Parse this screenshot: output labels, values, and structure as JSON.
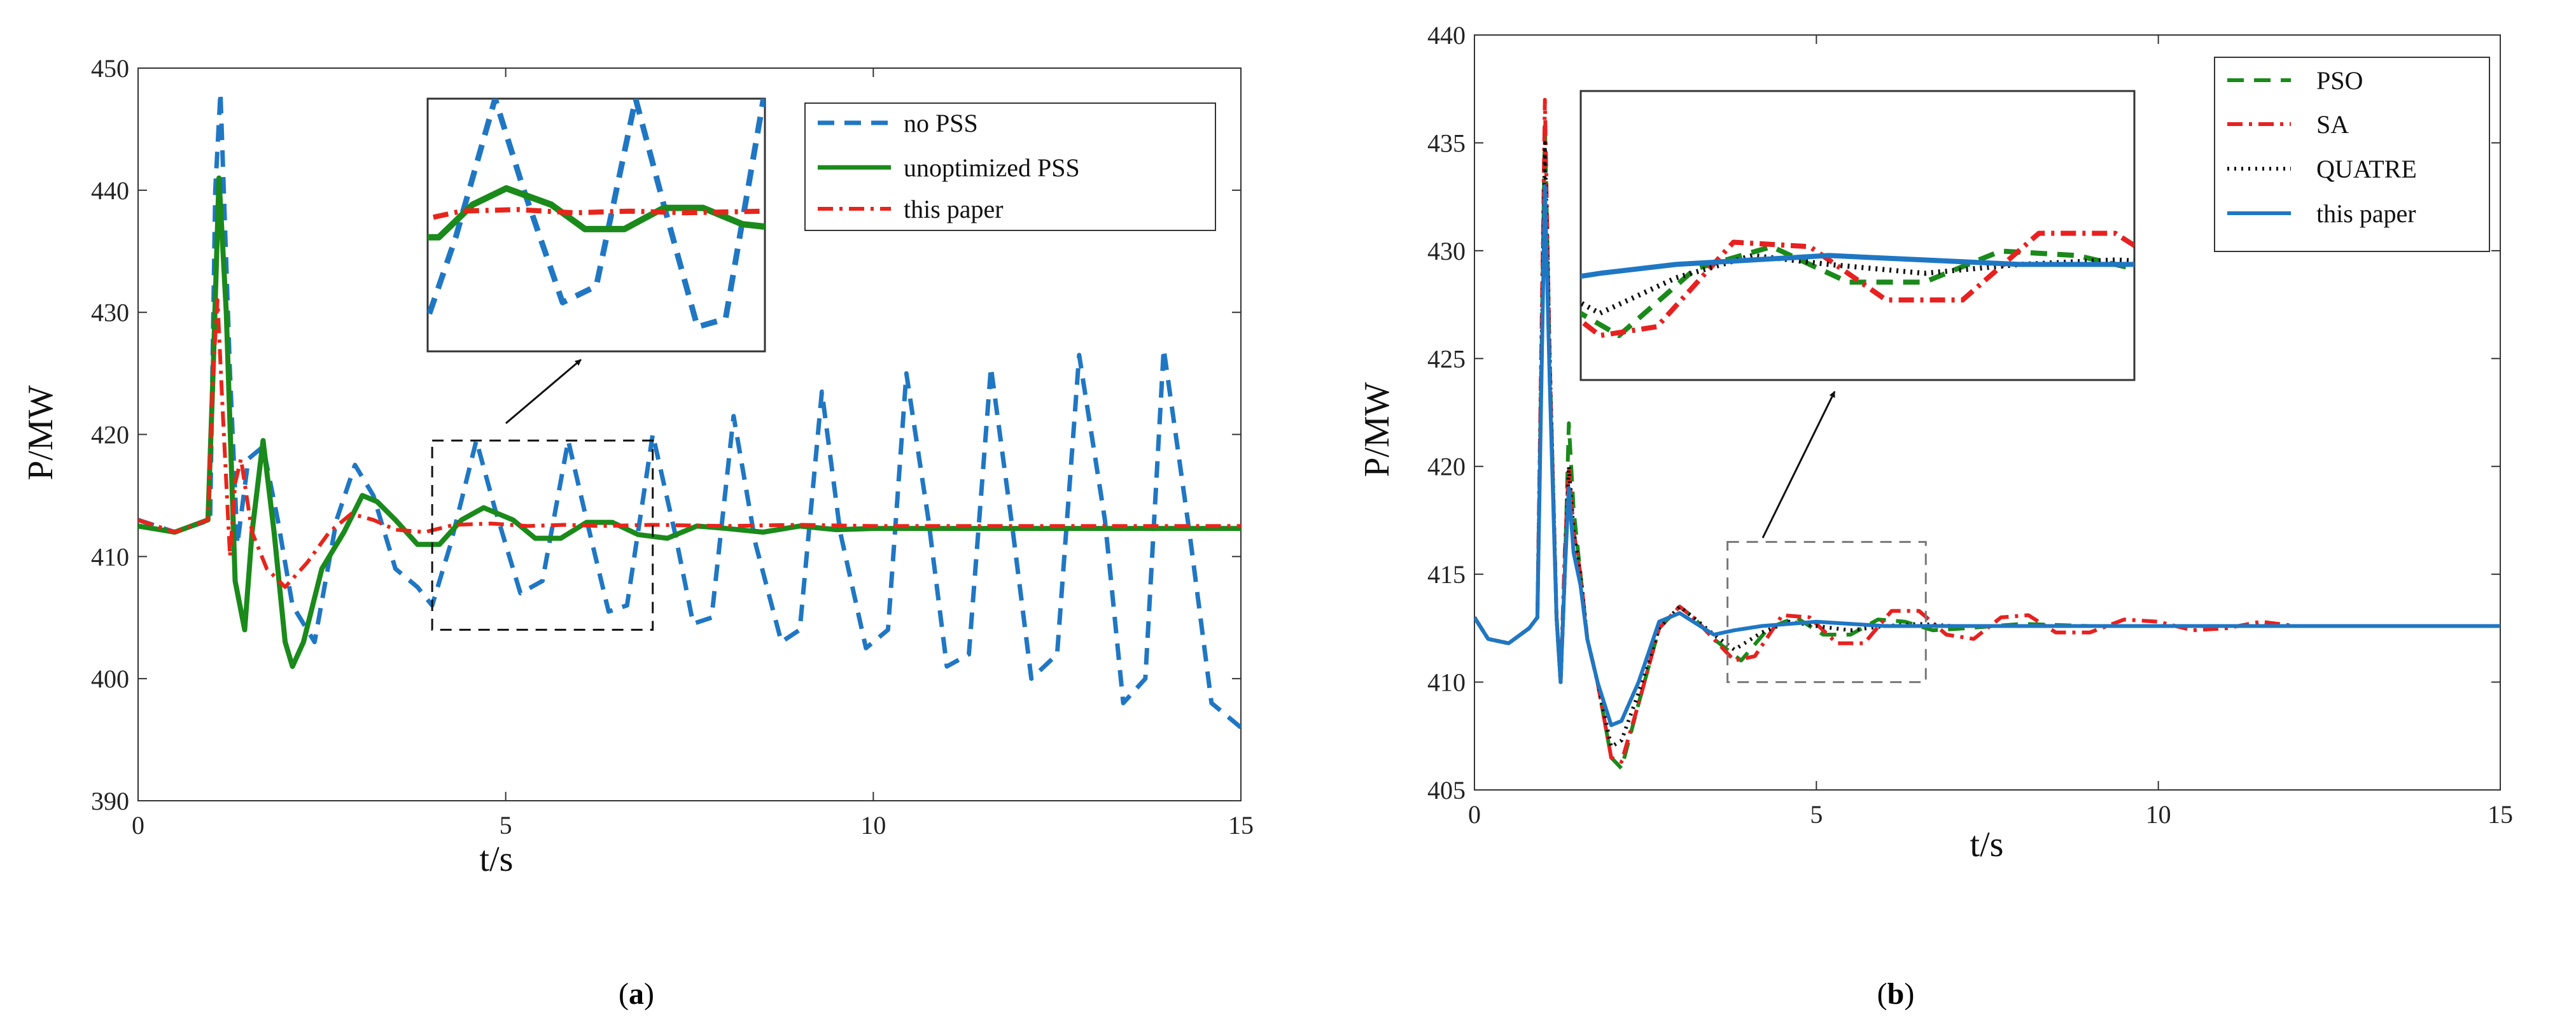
{
  "colors": {
    "blue": "#1f77c4",
    "green": "#1a8a1a",
    "red": "#e8251b",
    "black": "#111111",
    "sa_red": "#e82020",
    "axis": "#333333"
  },
  "chart_data": [
    {
      "type": "line",
      "panel": "a",
      "caption_open": "(",
      "caption_letter": "a",
      "caption_close": ")",
      "xlabel": "t/s",
      "ylabel": "P/MW",
      "xlim": [
        0,
        15
      ],
      "ylim": [
        390,
        450
      ],
      "xticks": [
        0,
        5,
        10,
        15
      ],
      "yticks": [
        390,
        400,
        410,
        420,
        430,
        440,
        450
      ],
      "legend": {
        "position": "top-right",
        "entries": [
          "no PSS",
          "unoptimized PSS",
          "this paper"
        ]
      },
      "zoom_window": {
        "x": [
          4,
          7
        ],
        "y": [
          404,
          419.5
        ]
      },
      "series": [
        {
          "name": "no PSS",
          "color": "#1f77c4",
          "style": "dashed",
          "x": [
            0,
            0.5,
            0.98,
            1.05,
            1.12,
            1.25,
            1.35,
            1.5,
            1.7,
            1.9,
            2.1,
            2.4,
            2.7,
            2.95,
            3.2,
            3.5,
            3.8,
            4.0,
            4.25,
            4.6,
            4.85,
            5.2,
            5.5,
            5.85,
            6.1,
            6.4,
            6.65,
            7.0,
            7.3,
            7.55,
            7.8,
            8.1,
            8.4,
            8.75,
            9.0,
            9.3,
            9.55,
            9.9,
            10.2,
            10.45,
            10.75,
            11.0,
            11.3,
            11.6,
            11.9,
            12.15,
            12.5,
            12.8,
            13.15,
            13.4,
            13.7,
            13.95,
            14.3,
            14.6,
            15.0
          ],
          "y": [
            413,
            412,
            413,
            440,
            448,
            425,
            411,
            418,
            419,
            413,
            406,
            403,
            413,
            417.5,
            415,
            409,
            407.5,
            406,
            411,
            419.5,
            414,
            407,
            408,
            419.5,
            413,
            405.5,
            406,
            420,
            412,
            404.5,
            405,
            421.5,
            411,
            403,
            404,
            423.5,
            412,
            402.5,
            404,
            425,
            413,
            401,
            402,
            425.5,
            412,
            400,
            402,
            426.5,
            413,
            398,
            400,
            427,
            412,
            398,
            396
          ]
        },
        {
          "name": "unoptimized PSS",
          "color": "#1a8a1a",
          "style": "solid",
          "x": [
            0,
            0.5,
            0.95,
            1.02,
            1.1,
            1.2,
            1.32,
            1.45,
            1.55,
            1.7,
            1.85,
            2.0,
            2.1,
            2.25,
            2.5,
            2.8,
            3.05,
            3.25,
            3.5,
            3.8,
            4.1,
            4.4,
            4.7,
            5.1,
            5.4,
            5.75,
            6.1,
            6.45,
            6.8,
            7.2,
            7.6,
            8.0,
            8.5,
            9.0,
            9.5,
            10.0,
            11.0,
            12.0,
            13.0,
            14.0,
            15.0
          ],
          "y": [
            412.5,
            412,
            413,
            425,
            441,
            430,
            408,
            404,
            412,
            419.5,
            412,
            403,
            401,
            403,
            409,
            412,
            415,
            414.5,
            413,
            411,
            411,
            413,
            414,
            413,
            411.5,
            411.5,
            412.8,
            412.8,
            411.8,
            411.5,
            412.5,
            412.3,
            412,
            412.5,
            412.2,
            412.3,
            412.3,
            412.3,
            412.3,
            412.3,
            412.3
          ]
        },
        {
          "name": "this paper",
          "color": "#e8251b",
          "style": "dashdot",
          "x": [
            0,
            0.5,
            0.95,
            1.02,
            1.08,
            1.15,
            1.25,
            1.32,
            1.4,
            1.55,
            1.75,
            2.0,
            2.3,
            2.6,
            2.9,
            3.2,
            3.5,
            3.9,
            4.3,
            4.8,
            5.3,
            5.8,
            6.3,
            7.0,
            8.0,
            9.0,
            10.0,
            11.0,
            12.0,
            13.0,
            14.0,
            15.0
          ],
          "y": [
            413,
            412,
            413,
            425,
            431,
            422,
            410,
            416,
            418,
            412,
            409,
            407.5,
            409.5,
            412,
            413.5,
            413,
            412.2,
            412,
            412.6,
            412.7,
            412.5,
            412.6,
            412.5,
            412.6,
            412.5,
            412.6,
            412.5,
            412.5,
            412.5,
            412.5,
            412.5,
            412.5
          ]
        }
      ]
    },
    {
      "type": "line",
      "panel": "b",
      "caption_open": "(",
      "caption_letter": "b",
      "caption_close": ")",
      "xlabel": "t/s",
      "ylabel": "P/MW",
      "xlim": [
        0,
        15
      ],
      "ylim": [
        405,
        440
      ],
      "xticks": [
        0,
        5,
        10,
        15
      ],
      "yticks": [
        405,
        410,
        415,
        420,
        425,
        430,
        435,
        440
      ],
      "legend": {
        "position": "top-right",
        "entries": [
          "PSO",
          "SA",
          "QUATRE",
          "this paper"
        ]
      },
      "zoom_window": {
        "x": [
          3.7,
          6.6
        ],
        "y": [
          410,
          416.5
        ]
      },
      "series": [
        {
          "name": "PSO",
          "color": "#1a8a1a",
          "style": "dashed",
          "x": [
            0,
            0.2,
            0.5,
            0.8,
            0.92,
            0.98,
            1.03,
            1.1,
            1.2,
            1.26,
            1.32,
            1.38,
            1.45,
            1.55,
            1.65,
            1.8,
            2.0,
            2.15,
            2.4,
            2.7,
            3.0,
            3.2,
            3.5,
            3.9,
            4.3,
            4.7,
            5.1,
            5.5,
            5.9,
            6.3,
            6.7,
            7.2,
            8.0,
            9.0,
            10.0,
            11.0,
            12.0,
            13.0,
            14.0,
            15.0
          ],
          "y": [
            413,
            412,
            411.8,
            412.5,
            413,
            425,
            436,
            425,
            413,
            410,
            415,
            422,
            418,
            415,
            412,
            410,
            406.5,
            406,
            409,
            412.5,
            413.5,
            413,
            412,
            411,
            412.5,
            413,
            412.2,
            412.2,
            412.9,
            412.8,
            412.4,
            412.5,
            412.7,
            412.6,
            412.6,
            412.6,
            412.6,
            412.6,
            412.6,
            412.6
          ]
        },
        {
          "name": "SA",
          "color": "#e82020",
          "style": "dashdot",
          "x": [
            0,
            0.2,
            0.5,
            0.8,
            0.92,
            0.98,
            1.03,
            1.1,
            1.2,
            1.26,
            1.32,
            1.38,
            1.45,
            1.55,
            1.65,
            1.8,
            2.0,
            2.15,
            2.4,
            2.7,
            3.0,
            3.2,
            3.5,
            3.8,
            4.1,
            4.5,
            4.9,
            5.3,
            5.7,
            6.1,
            6.5,
            6.9,
            7.3,
            7.7,
            8.1,
            8.5,
            9.0,
            9.5,
            10.0,
            10.5,
            11.0,
            11.5,
            12.0,
            13.0,
            14.0,
            15.0
          ],
          "y": [
            413,
            412,
            411.8,
            412.5,
            413,
            426,
            437,
            425,
            413,
            410,
            416,
            420,
            417,
            415,
            412,
            410,
            406.5,
            406.3,
            409,
            412.5,
            413.5,
            413,
            412,
            411,
            411.2,
            413.1,
            413,
            411.8,
            411.8,
            413.3,
            413.3,
            412.2,
            412,
            413,
            413.1,
            412.3,
            412.3,
            412.9,
            412.8,
            412.4,
            412.5,
            412.8,
            412.6,
            412.6,
            412.6,
            412.6
          ]
        },
        {
          "name": "QUATRE",
          "color": "#111111",
          "style": "dotted",
          "x": [
            0,
            0.2,
            0.5,
            0.8,
            0.92,
            0.98,
            1.03,
            1.1,
            1.2,
            1.26,
            1.32,
            1.38,
            1.45,
            1.55,
            1.65,
            1.8,
            2.0,
            2.15,
            2.4,
            2.7,
            3.0,
            3.2,
            3.5,
            3.8,
            4.2,
            4.6,
            5.0,
            5.5,
            6.0,
            6.5,
            7.0,
            8.0,
            9.0,
            10.0,
            11.0,
            12.0,
            13.0,
            14.0,
            15.0
          ],
          "y": [
            413,
            412,
            411.8,
            412.5,
            413,
            425,
            435,
            425,
            413,
            410,
            415,
            420,
            417,
            415,
            412,
            410,
            407,
            407.3,
            409.5,
            412.5,
            413.5,
            413,
            412.2,
            411.5,
            412.3,
            412.8,
            412.6,
            412.4,
            412.6,
            412.7,
            412.6,
            412.6,
            412.6,
            412.6,
            412.6,
            412.6,
            412.6,
            412.6,
            412.6
          ]
        },
        {
          "name": "this paper",
          "color": "#1f77c4",
          "style": "solid",
          "x": [
            0,
            0.2,
            0.5,
            0.8,
            0.92,
            0.98,
            1.03,
            1.1,
            1.2,
            1.26,
            1.32,
            1.38,
            1.45,
            1.55,
            1.65,
            1.8,
            2.0,
            2.15,
            2.4,
            2.7,
            3.0,
            3.2,
            3.5,
            3.8,
            4.2,
            4.6,
            5.0,
            5.5,
            6.0,
            7.0,
            8.0,
            9.0,
            10.0,
            11.0,
            12.0,
            13.0,
            14.0,
            15.0
          ],
          "y": [
            413,
            412,
            411.8,
            412.5,
            413,
            424,
            433,
            424,
            413,
            410,
            415,
            419,
            416,
            414.5,
            412,
            410,
            408,
            408.2,
            410,
            412.8,
            413.2,
            412.8,
            412.2,
            412.4,
            412.6,
            412.7,
            412.8,
            412.7,
            412.6,
            412.6,
            412.6,
            412.6,
            412.6,
            412.6,
            412.6,
            412.6,
            412.6,
            412.6
          ]
        }
      ]
    }
  ]
}
